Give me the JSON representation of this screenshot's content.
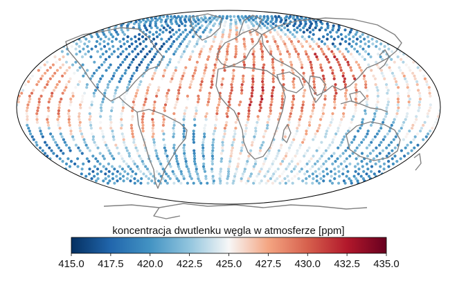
{
  "map": {
    "projection": "Mollweide",
    "central_longitude": 0,
    "coastline_color": "#808080",
    "outline_color": "#000000"
  },
  "colorbar": {
    "label": "koncentracja dwutlenku węgla w atmosferze [ppm]",
    "colormap": "RdBu_r",
    "min": 415.0,
    "max": 435.0,
    "orientation": "horizontal",
    "placement": "bottom",
    "ticks": [
      "415.0",
      "417.5",
      "420.0",
      "422.5",
      "425.0",
      "427.5",
      "430.0",
      "432.5",
      "435.0"
    ]
  },
  "chart_data": {
    "type": "scatter",
    "description_units": "longitude/latitude in degrees, value in ppm",
    "value_range": [
      415.0,
      435.0
    ],
    "regional_pattern": [
      {
        "lon": -150,
        "lat": 10,
        "value": 428
      },
      {
        "lon": -120,
        "lat": 35,
        "value": 420
      },
      {
        "lon": -95,
        "lat": 45,
        "value": 418
      },
      {
        "lon": -60,
        "lat": 0,
        "value": 428
      },
      {
        "lon": -40,
        "lat": -30,
        "value": 421
      },
      {
        "lon": 0,
        "lat": 15,
        "value": 428
      },
      {
        "lon": 20,
        "lat": 5,
        "value": 431
      },
      {
        "lon": 25,
        "lat": -20,
        "value": 424
      },
      {
        "lon": 60,
        "lat": 30,
        "value": 428
      },
      {
        "lon": 100,
        "lat": 35,
        "value": 430
      },
      {
        "lon": 120,
        "lat": 60,
        "value": 418
      },
      {
        "lon": 135,
        "lat": -25,
        "value": 421
      },
      {
        "lon": -170,
        "lat": -40,
        "value": 419
      },
      {
        "lon": 160,
        "lat": 0,
        "value": 426
      }
    ]
  }
}
